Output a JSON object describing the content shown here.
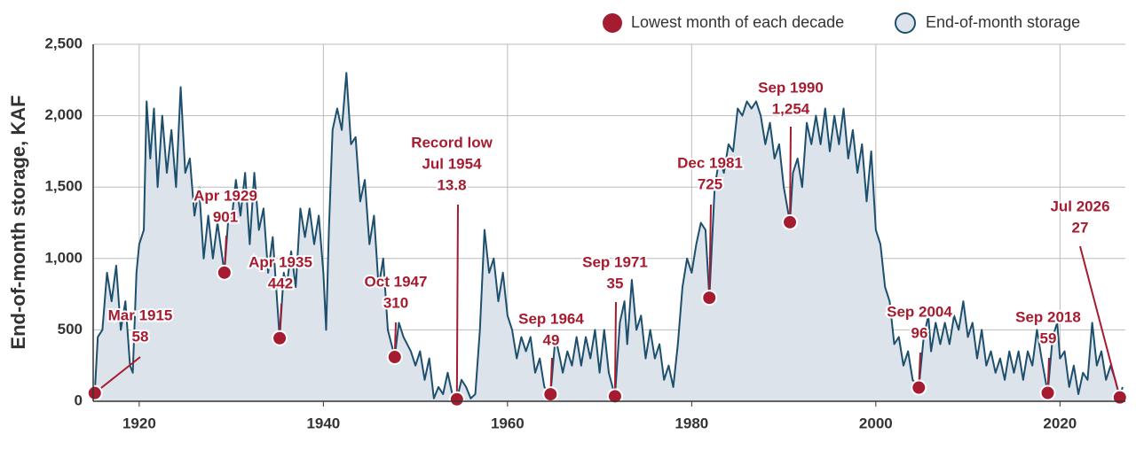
{
  "chart_data": {
    "type": "area",
    "y_title": "End-of-month storage, KAF",
    "xlim": [
      1915,
      2027.1
    ],
    "ylim": [
      0,
      2500
    ],
    "xticks": [
      1920,
      1940,
      1960,
      1980,
      2000,
      2020
    ],
    "yticks": [
      0,
      500,
      {
        "value": 1000,
        "label": "1,000"
      },
      {
        "value": 1500,
        "label": "1,500"
      },
      {
        "value": 2000,
        "label": "2,000"
      },
      {
        "value": 2500,
        "label": "2,500"
      }
    ],
    "grid": true,
    "legend": "top-right",
    "record_label": "Record low",
    "series": [
      {
        "name": "End-of-month storage",
        "color": "#1d4f6e",
        "fill": "#dde3ea",
        "x": [
          1915.0,
          1915.17,
          1915.5,
          1916,
          1916.5,
          1917,
          1917.5,
          1918,
          1918.5,
          1919,
          1919.3,
          1919.7,
          1920,
          1920.5,
          1920.8,
          1921.2,
          1921.6,
          1922,
          1922.5,
          1923,
          1923.5,
          1924,
          1924.5,
          1925,
          1925.5,
          1926,
          1926.5,
          1927,
          1927.5,
          1928,
          1928.5,
          1929.25,
          1929.7,
          1930,
          1930.5,
          1931,
          1931.5,
          1932,
          1932.5,
          1933,
          1933.5,
          1934,
          1934.5,
          1935.25,
          1935.7,
          1936,
          1936.5,
          1937,
          1937.5,
          1938,
          1938.5,
          1939,
          1939.5,
          1940,
          1940.3,
          1940.6,
          1941,
          1941.5,
          1942,
          1942.5,
          1943,
          1943.5,
          1944,
          1944.5,
          1945,
          1945.5,
          1946,
          1946.5,
          1947,
          1947.75,
          1948.2,
          1948.7,
          1949.5,
          1950,
          1950.5,
          1951,
          1951.5,
          1952,
          1952.5,
          1953,
          1953.5,
          1954,
          1954.5,
          1955,
          1955.5,
          1956,
          1956.5,
          1957,
          1957.5,
          1958,
          1958.5,
          1959,
          1959.5,
          1960,
          1960.5,
          1961,
          1961.5,
          1962,
          1962.5,
          1963,
          1963.5,
          1964,
          1964.67,
          1965.2,
          1965.7,
          1966,
          1966.5,
          1967,
          1967.5,
          1968,
          1968.5,
          1969,
          1969.5,
          1970,
          1970.5,
          1971,
          1971.67,
          1972.2,
          1972.7,
          1973,
          1973.5,
          1974,
          1974.5,
          1975,
          1975.5,
          1976,
          1976.5,
          1977,
          1977.5,
          1978,
          1978.5,
          1979,
          1979.5,
          1980,
          1980.5,
          1981,
          1981.5,
          1981.92,
          1982.5,
          1983,
          1983.5,
          1984,
          1984.5,
          1985,
          1985.5,
          1986,
          1986.5,
          1987,
          1987.5,
          1988,
          1988.5,
          1989,
          1989.5,
          1990,
          1990.67,
          1991,
          1991.5,
          1992,
          1992.5,
          1993,
          1993.5,
          1994,
          1994.5,
          1995,
          1995.5,
          1996,
          1996.5,
          1997,
          1997.5,
          1998,
          1998.5,
          1999,
          1999.5,
          2000,
          2000.5,
          2001,
          2001.5,
          2002,
          2002.5,
          2003,
          2003.5,
          2004,
          2004.67,
          2005.2,
          2005.7,
          2006,
          2006.5,
          2007,
          2007.5,
          2008,
          2008.5,
          2009,
          2009.5,
          2010,
          2010.5,
          2011,
          2011.5,
          2012,
          2012.5,
          2013,
          2013.5,
          2014,
          2014.5,
          2015,
          2015.5,
          2016,
          2016.5,
          2017,
          2017.5,
          2018,
          2018.67,
          2019.2,
          2019.7,
          2020,
          2020.5,
          2021,
          2021.5,
          2022,
          2022.5,
          2023,
          2023.5,
          2024,
          2024.5,
          2025,
          2025.5,
          2026,
          2026.5,
          2026.8
        ],
        "values": [
          100,
          58,
          450,
          500,
          900,
          700,
          950,
          500,
          700,
          250,
          200,
          900,
          1100,
          1200,
          2100,
          1700,
          2050,
          1500,
          2000,
          1600,
          1900,
          1500,
          2200,
          1600,
          1700,
          1300,
          1500,
          1000,
          1300,
          1000,
          1250,
          901,
          1300,
          1250,
          1550,
          1300,
          1600,
          1100,
          1600,
          1200,
          1350,
          900,
          1150,
          442,
          900,
          800,
          1050,
          800,
          1350,
          1150,
          1350,
          1100,
          1300,
          900,
          500,
          1200,
          1900,
          2050,
          1900,
          2300,
          1800,
          1850,
          1400,
          1550,
          1100,
          1300,
          800,
          1000,
          500,
          310,
          550,
          450,
          350,
          250,
          350,
          150,
          300,
          20,
          100,
          50,
          200,
          50,
          13.8,
          150,
          100,
          20,
          50,
          500,
          1200,
          900,
          1000,
          700,
          900,
          600,
          500,
          300,
          450,
          350,
          450,
          200,
          300,
          100,
          49,
          450,
          300,
          200,
          350,
          250,
          450,
          250,
          450,
          300,
          500,
          200,
          500,
          200,
          35,
          550,
          700,
          400,
          850,
          500,
          600,
          300,
          500,
          300,
          400,
          150,
          250,
          100,
          400,
          800,
          1000,
          900,
          1100,
          1250,
          1200,
          725,
          1500,
          1700,
          1600,
          1800,
          1750,
          2050,
          2000,
          2100,
          2050,
          2100,
          2000,
          1800,
          1950,
          1700,
          1800,
          1500,
          1254,
          1600,
          1700,
          1500,
          1950,
          1800,
          2000,
          1800,
          2050,
          1750,
          2000,
          1800,
          2050,
          1700,
          1900,
          1600,
          1800,
          1400,
          1750,
          1200,
          1100,
          800,
          700,
          400,
          450,
          250,
          350,
          150,
          96,
          450,
          600,
          350,
          550,
          400,
          550,
          400,
          600,
          500,
          700,
          450,
          550,
          300,
          500,
          250,
          350,
          200,
          300,
          150,
          350,
          200,
          350,
          150,
          350,
          250,
          500,
          300,
          59,
          450,
          550,
          300,
          350,
          100,
          250,
          50,
          200,
          150,
          550,
          250,
          350,
          150,
          250,
          150,
          27,
          100
        ]
      },
      {
        "name": "Lowest month of each decade",
        "color": "#a51c30",
        "x": [
          1915.17,
          1929.25,
          1935.25,
          1947.75,
          1954.5,
          1964.67,
          1971.67,
          1981.92,
          1990.67,
          2004.67,
          2018.67,
          2026.5
        ],
        "values": [
          58,
          901,
          442,
          310,
          13.8,
          49,
          35,
          725,
          1254,
          96,
          59,
          27
        ],
        "value_labels": [
          "58",
          "901",
          "442",
          "310",
          "13.8",
          "49",
          "35",
          "725",
          "1,254",
          "96",
          "59",
          "27"
        ],
        "point_labels": [
          "Mar 1915",
          "Apr 1929",
          "Apr 1935",
          "Oct 1947",
          "Jul 1954",
          "Sep 1964",
          "Sep 1971",
          "Dec 1981",
          "Sep 1990",
          "Sep 2004",
          "Sep 2018",
          "Jul 2026"
        ]
      }
    ]
  }
}
